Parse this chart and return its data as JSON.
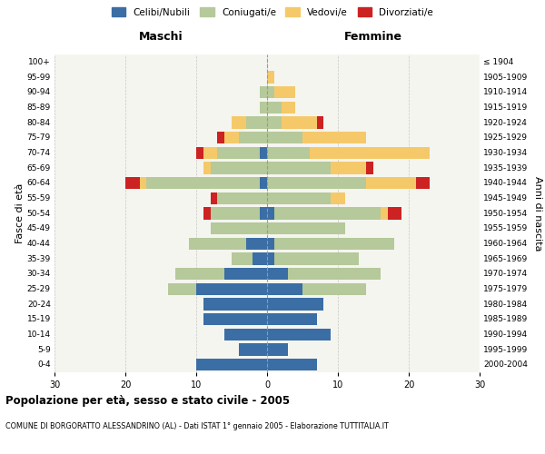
{
  "age_groups": [
    "0-4",
    "5-9",
    "10-14",
    "15-19",
    "20-24",
    "25-29",
    "30-34",
    "35-39",
    "40-44",
    "45-49",
    "50-54",
    "55-59",
    "60-64",
    "65-69",
    "70-74",
    "75-79",
    "80-84",
    "85-89",
    "90-94",
    "95-99",
    "100+"
  ],
  "birth_years": [
    "2000-2004",
    "1995-1999",
    "1990-1994",
    "1985-1989",
    "1980-1984",
    "1975-1979",
    "1970-1974",
    "1965-1969",
    "1960-1964",
    "1955-1959",
    "1950-1954",
    "1945-1949",
    "1940-1944",
    "1935-1939",
    "1930-1934",
    "1925-1929",
    "1920-1924",
    "1915-1919",
    "1910-1914",
    "1905-1909",
    "≤ 1904"
  ],
  "males": {
    "celibi": [
      10,
      4,
      6,
      9,
      9,
      10,
      6,
      2,
      3,
      0,
      1,
      0,
      1,
      0,
      1,
      0,
      0,
      0,
      0,
      0,
      0
    ],
    "coniugati": [
      0,
      0,
      0,
      0,
      0,
      4,
      7,
      3,
      8,
      8,
      7,
      7,
      16,
      8,
      6,
      4,
      3,
      1,
      1,
      0,
      0
    ],
    "vedovi": [
      0,
      0,
      0,
      0,
      0,
      0,
      0,
      0,
      0,
      0,
      0,
      0,
      1,
      1,
      2,
      2,
      2,
      0,
      0,
      0,
      0
    ],
    "divorziati": [
      0,
      0,
      0,
      0,
      0,
      0,
      0,
      0,
      0,
      0,
      1,
      1,
      2,
      0,
      1,
      1,
      0,
      0,
      0,
      0,
      0
    ]
  },
  "females": {
    "nubili": [
      7,
      3,
      9,
      7,
      8,
      5,
      3,
      1,
      1,
      0,
      1,
      0,
      0,
      0,
      0,
      0,
      0,
      0,
      0,
      0,
      0
    ],
    "coniugate": [
      0,
      0,
      0,
      0,
      0,
      9,
      13,
      12,
      17,
      11,
      15,
      9,
      14,
      9,
      6,
      5,
      2,
      2,
      1,
      0,
      0
    ],
    "vedove": [
      0,
      0,
      0,
      0,
      0,
      0,
      0,
      0,
      0,
      0,
      1,
      2,
      7,
      5,
      17,
      9,
      5,
      2,
      3,
      1,
      0
    ],
    "divorziate": [
      0,
      0,
      0,
      0,
      0,
      0,
      0,
      0,
      0,
      0,
      2,
      0,
      2,
      1,
      0,
      0,
      1,
      0,
      0,
      0,
      0
    ]
  },
  "colors": {
    "celibi": "#3a6ea5",
    "coniugati": "#b5c99a",
    "vedovi": "#f5c96a",
    "divorziati": "#cc2222"
  },
  "xlim": 30,
  "title": "Popolazione per età, sesso e stato civile - 2005",
  "subtitle": "COMUNE DI BORGORATTO ALESSANDRINO (AL) - Dati ISTAT 1° gennaio 2005 - Elaborazione TUTTITALIA.IT",
  "ylabel_left": "Fasce di età",
  "ylabel_right": "Anni di nascita",
  "xlabel_left": "Maschi",
  "xlabel_right": "Femmine",
  "legend_labels": [
    "Celibi/Nubili",
    "Coniugati/e",
    "Vedovi/e",
    "Divorziati/e"
  ]
}
